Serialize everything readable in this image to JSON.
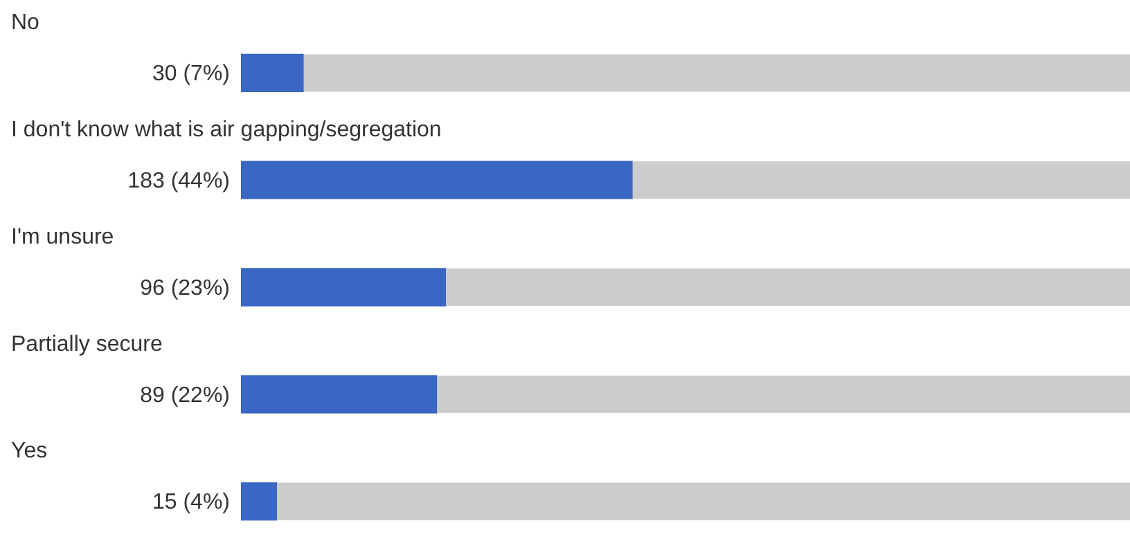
{
  "chart_data": {
    "type": "bar",
    "orientation": "horizontal",
    "categories": [
      "No",
      "I don't know what is air gapping/segregation",
      "I'm unsure",
      "Partially secure",
      "Yes"
    ],
    "values": [
      7,
      44,
      23,
      22,
      4
    ],
    "value_labels": [
      "30 (7%)",
      "183 (44%)",
      "96 (23%)",
      "89 (22%)",
      "15 (4%)"
    ],
    "color": "#3a66c4",
    "legend": false
  }
}
